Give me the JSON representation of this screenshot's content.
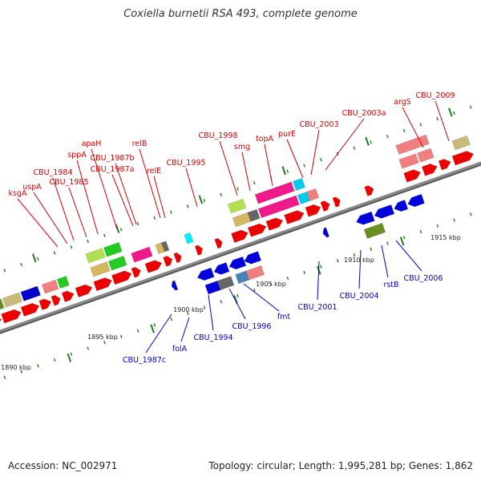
{
  "title": "Coxiella burnetii RSA 493, complete genome",
  "footer": {
    "accession": "Accession: NC_002971",
    "summary": "Topology: circular; Length: 1,995,281 bp; Genes: 1,862"
  },
  "colors": {
    "backbone": "#8a8a8a",
    "forward_label": "#d40000",
    "reverse_label": "#0000cc",
    "tick": "#1e7a1e"
  },
  "kbp_labels": [
    "1890 kbp",
    "1895 kbp",
    "1900 kbp",
    "1905 kbp",
    "1910 kbp",
    "1915 kbp"
  ],
  "forward_gene_labels": [
    "ksgA",
    "uspA",
    "CBU_1984",
    "CBU_1985",
    "sppA",
    "apaH",
    "CBU_1987a",
    "CBU_1987b",
    "relB",
    "relE",
    "CBU_1995",
    "CBU_1998",
    "smg",
    "topA",
    "purE",
    "CBU_2003",
    "CBU_2003a",
    "argS",
    "CBU_2009"
  ],
  "reverse_gene_labels": [
    "CBU_1987c",
    "folA",
    "CBU_1994",
    "CBU_1996",
    "fmt",
    "CBU_2001",
    "CBU_2004",
    "rstB",
    "CBU_2006"
  ]
}
